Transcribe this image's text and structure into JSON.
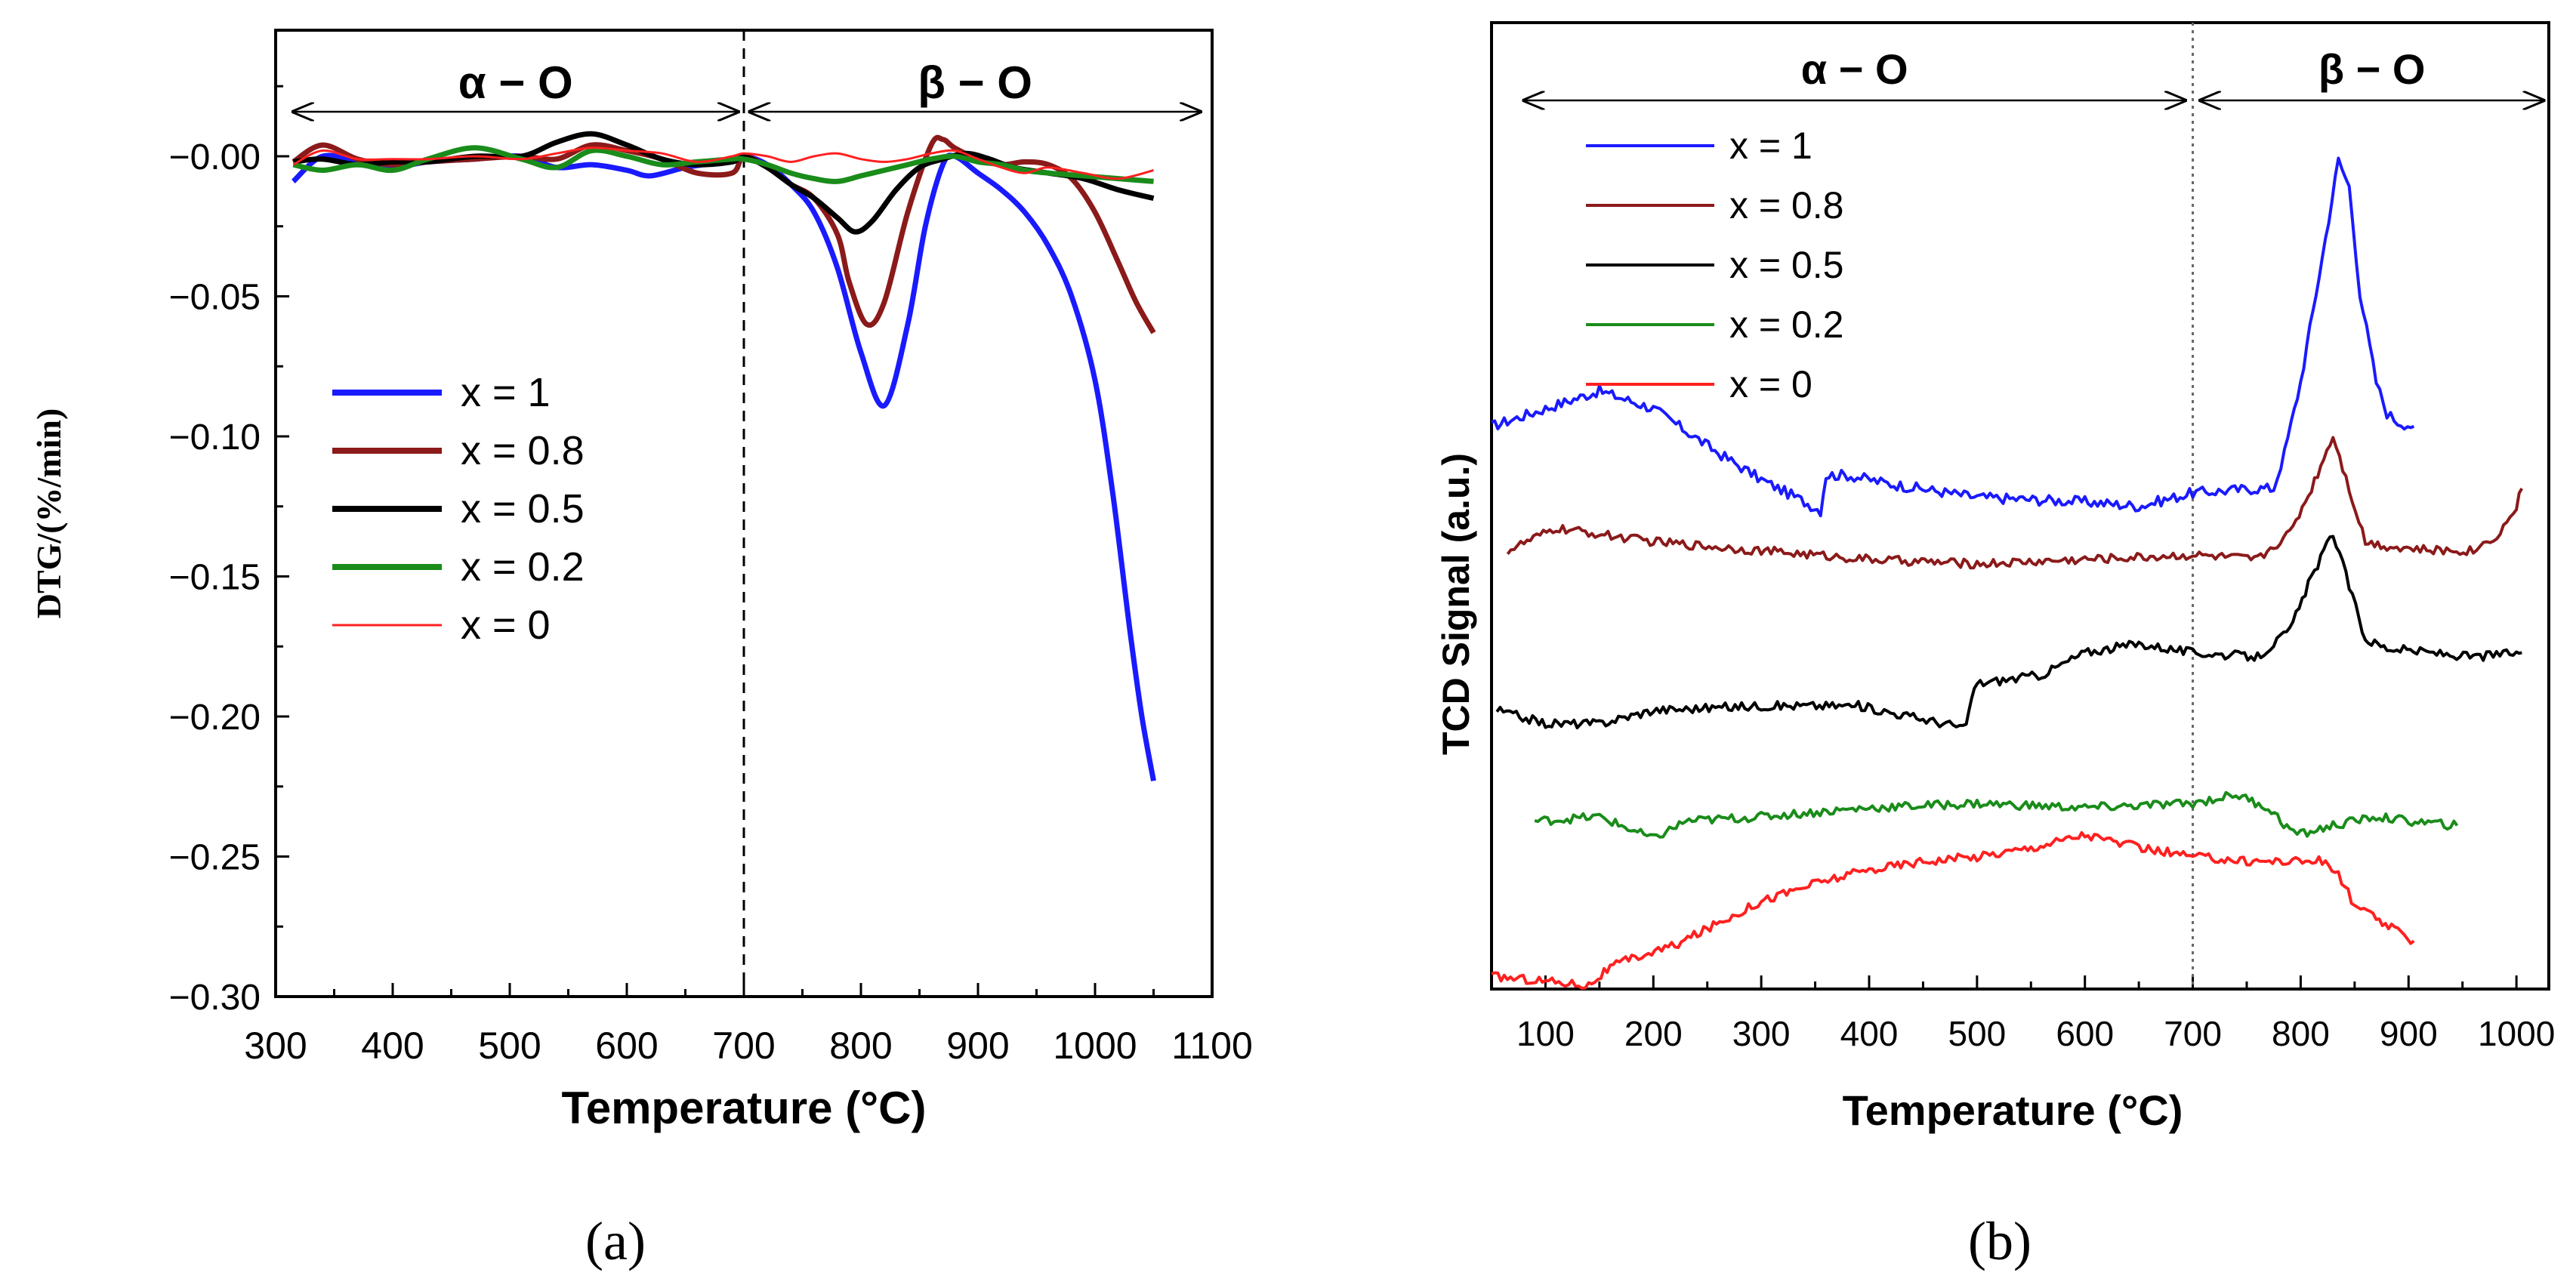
{
  "chart_data": [
    {
      "panel": "a",
      "panel_label": "(a)",
      "type": "line",
      "title": "",
      "xlabel": "Temperature (°C)",
      "ylabel": "DTG/(%/min)",
      "xlim": [
        300,
        1100
      ],
      "ylim": [
        -0.3,
        0.045
      ],
      "xticks": [
        300,
        400,
        500,
        600,
        700,
        800,
        900,
        1000,
        1100
      ],
      "xtick_labels": [
        "300",
        "400",
        "500",
        "600",
        "700",
        "800",
        "900",
        "1000",
        "1100"
      ],
      "yticks": [
        0,
        -0.05,
        -0.1,
        -0.15,
        -0.2,
        -0.25,
        -0.3
      ],
      "ytick_labels": [
        "−0.00",
        "−0.05",
        "−0.10",
        "−0.15",
        "−0.20",
        "−0.25",
        "−0.30"
      ],
      "divider_x": 700,
      "regions": [
        {
          "label": "α − O",
          "from": 300,
          "to": 700
        },
        {
          "label": "β − O",
          "from": 700,
          "to": 1100
        }
      ],
      "legend": "center-left",
      "series": [
        {
          "name": "x = 1",
          "color": "#1a1aff",
          "x": [
            315,
            340,
            370,
            400,
            430,
            470,
            510,
            540,
            570,
            600,
            620,
            650,
            680,
            700,
            720,
            740,
            760,
            780,
            800,
            820,
            840,
            855,
            870,
            880,
            900,
            920,
            940,
            960,
            980,
            1000,
            1015,
            1030,
            1040,
            1050
          ],
          "y": [
            -0.009,
            0.0,
            -0.002,
            -0.004,
            -0.002,
            -0.001,
            0.0,
            -0.004,
            -0.003,
            -0.005,
            -0.007,
            -0.004,
            -0.002,
            0.0,
            -0.003,
            -0.01,
            -0.02,
            -0.04,
            -0.07,
            -0.089,
            -0.06,
            -0.025,
            -0.003,
            0.0,
            -0.006,
            -0.012,
            -0.02,
            -0.032,
            -0.05,
            -0.08,
            -0.12,
            -0.17,
            -0.2,
            -0.223
          ]
        },
        {
          "name": "x = 0.8",
          "color": "#8b1a1a",
          "x": [
            315,
            340,
            370,
            400,
            430,
            470,
            510,
            540,
            570,
            600,
            630,
            660,
            690,
            700,
            720,
            740,
            760,
            780,
            790,
            805,
            820,
            840,
            860,
            870,
            880,
            900,
            920,
            940,
            960,
            980,
            1000,
            1020,
            1035,
            1050
          ],
          "y": [
            -0.002,
            0.004,
            -0.001,
            -0.003,
            -0.002,
            -0.001,
            0.0,
            -0.001,
            0.004,
            0.002,
            -0.001,
            -0.006,
            -0.006,
            0.0,
            -0.004,
            -0.01,
            -0.015,
            -0.028,
            -0.045,
            -0.06,
            -0.052,
            -0.02,
            0.004,
            0.006,
            0.003,
            -0.001,
            -0.003,
            -0.002,
            -0.003,
            -0.008,
            -0.02,
            -0.038,
            -0.052,
            -0.063
          ]
        },
        {
          "name": "x = 0.5",
          "color": "#000000",
          "x": [
            315,
            340,
            370,
            400,
            430,
            470,
            510,
            540,
            570,
            600,
            630,
            660,
            690,
            700,
            720,
            740,
            760,
            780,
            795,
            810,
            830,
            850,
            870,
            890,
            910,
            930,
            960,
            990,
            1020,
            1050
          ],
          "y": [
            -0.002,
            -0.001,
            -0.003,
            -0.002,
            -0.002,
            0.0,
            0.0,
            0.005,
            0.008,
            0.004,
            -0.001,
            -0.003,
            -0.002,
            0.0,
            -0.004,
            -0.01,
            -0.015,
            -0.022,
            -0.027,
            -0.023,
            -0.012,
            -0.004,
            -0.001,
            0.001,
            -0.001,
            -0.004,
            -0.006,
            -0.008,
            -0.012,
            -0.015
          ]
        },
        {
          "name": "x = 0.2",
          "color": "#1a8c1a",
          "x": [
            315,
            340,
            370,
            400,
            430,
            470,
            510,
            540,
            570,
            600,
            630,
            660,
            690,
            700,
            720,
            740,
            760,
            780,
            800,
            820,
            840,
            860,
            880,
            900,
            920,
            940,
            960,
            990,
            1020,
            1050
          ],
          "y": [
            -0.003,
            -0.005,
            -0.003,
            -0.005,
            -0.001,
            0.003,
            -0.001,
            -0.004,
            0.002,
            0.0,
            -0.003,
            -0.002,
            -0.001,
            -0.001,
            -0.003,
            -0.006,
            -0.008,
            -0.009,
            -0.007,
            -0.005,
            -0.003,
            -0.001,
            0.0,
            -0.002,
            -0.003,
            -0.005,
            -0.006,
            -0.007,
            -0.008,
            -0.009
          ]
        },
        {
          "name": "x = 0",
          "color": "#ff2020",
          "thin": true,
          "x": [
            315,
            340,
            370,
            400,
            430,
            470,
            510,
            540,
            570,
            600,
            630,
            660,
            690,
            700,
            720,
            740,
            760,
            780,
            800,
            820,
            840,
            860,
            880,
            900,
            920,
            940,
            960,
            990,
            1020,
            1050
          ],
          "y": [
            -0.003,
            0.002,
            -0.001,
            -0.001,
            -0.001,
            0.0,
            -0.001,
            0.001,
            0.003,
            0.002,
            0.001,
            -0.002,
            0.0,
            0.001,
            0.0,
            -0.002,
            0.0,
            0.001,
            -0.001,
            -0.002,
            -0.001,
            0.001,
            0.002,
            -0.001,
            -0.004,
            -0.006,
            -0.004,
            -0.006,
            -0.008,
            -0.005
          ]
        }
      ]
    },
    {
      "panel": "b",
      "panel_label": "(b)",
      "type": "line",
      "title": "",
      "xlabel": "Temperature (°C)",
      "ylabel": "TCD Signal (a.u.)",
      "xlim": [
        50,
        1030
      ],
      "ylim": [
        0,
        10
      ],
      "xticks": [
        100,
        200,
        300,
        400,
        500,
        600,
        700,
        800,
        900,
        1000
      ],
      "xtick_labels": [
        "100",
        "200",
        "300",
        "400",
        "500",
        "600",
        "700",
        "800",
        "900",
        "1000"
      ],
      "yticks": [],
      "divider_x": 700,
      "regions": [
        {
          "label": "α − O",
          "from": 80,
          "to": 700
        },
        {
          "label": "β − O",
          "from": 700,
          "to": 1020
        }
      ],
      "legend": "top-left",
      "series": [
        {
          "name": "x = 1",
          "color": "#1a1aff",
          "noise": 0.06,
          "x": [
            50,
            100,
            150,
            200,
            260,
            300,
            340,
            355,
            360,
            380,
            420,
            500,
            600,
            650,
            700,
            760,
            775,
            785,
            800,
            820,
            835,
            845,
            855,
            870,
            880,
            890,
            905
          ],
          "y": [
            6.3,
            6.5,
            6.7,
            6.5,
            6.0,
            5.7,
            5.45,
            5.35,
            5.75,
            5.75,
            5.65,
            5.5,
            5.45,
            5.4,
            5.55,
            5.6,
            5.6,
            6.0,
            6.8,
            8.2,
            9.3,
            9.0,
            7.8,
            6.8,
            6.45,
            6.35,
            6.3
          ]
        },
        {
          "name": "x = 0.8",
          "color": "#8b1a1a",
          "noise": 0.05,
          "x": [
            65,
            110,
            200,
            300,
            400,
            500,
            600,
            700,
            760,
            790,
            810,
            830,
            845,
            860,
            880,
            920,
            960,
            985,
            1000,
            1005
          ],
          "y": [
            4.9,
            5.15,
            5.0,
            4.9,
            4.8,
            4.75,
            4.8,
            4.85,
            4.8,
            5.1,
            5.6,
            6.2,
            5.6,
            5.0,
            4.95,
            4.9,
            4.9,
            5.1,
            5.4,
            5.6
          ]
        },
        {
          "name": "x = 0.5",
          "color": "#000000",
          "noise": 0.05,
          "x": [
            55,
            100,
            150,
            200,
            300,
            390,
            450,
            490,
            495,
            500,
            560,
            600,
            650,
            700,
            760,
            790,
            810,
            830,
            845,
            860,
            880,
            920,
            960,
            1000,
            1005
          ],
          "y": [
            3.1,
            2.95,
            2.95,
            3.1,
            3.15,
            3.15,
            3.0,
            2.9,
            3.25,
            3.4,
            3.5,
            3.75,
            3.85,
            3.75,
            3.7,
            4.0,
            4.6,
            5.1,
            4.5,
            3.9,
            3.8,
            3.75,
            3.7,
            3.75,
            3.75
          ]
        },
        {
          "name": "x = 0.2",
          "color": "#1a8c1a",
          "noise": 0.05,
          "x": [
            90,
            150,
            200,
            230,
            300,
            400,
            500,
            600,
            700,
            740,
            770,
            790,
            800,
            830,
            870,
            900,
            945
          ],
          "y": [
            1.85,
            1.9,
            1.65,
            1.85,
            1.9,
            2.0,
            2.05,
            2.0,
            2.05,
            2.15,
            2.0,
            1.75,
            1.7,
            1.8,
            1.9,
            1.85,
            1.8
          ]
        },
        {
          "name": "x = 0",
          "color": "#ff2020",
          "noise": 0.05,
          "x": [
            50,
            100,
            140,
            160,
            180,
            220,
            300,
            350,
            400,
            450,
            500,
            550,
            600,
            650,
            700,
            750,
            780,
            820,
            835,
            850,
            870,
            890,
            905
          ],
          "y": [
            0.1,
            0.05,
            0.0,
            0.2,
            0.3,
            0.45,
            0.95,
            1.15,
            1.3,
            1.4,
            1.45,
            1.55,
            1.7,
            1.55,
            1.45,
            1.4,
            1.4,
            1.4,
            1.25,
            0.9,
            0.75,
            0.6,
            0.5
          ]
        }
      ]
    }
  ]
}
